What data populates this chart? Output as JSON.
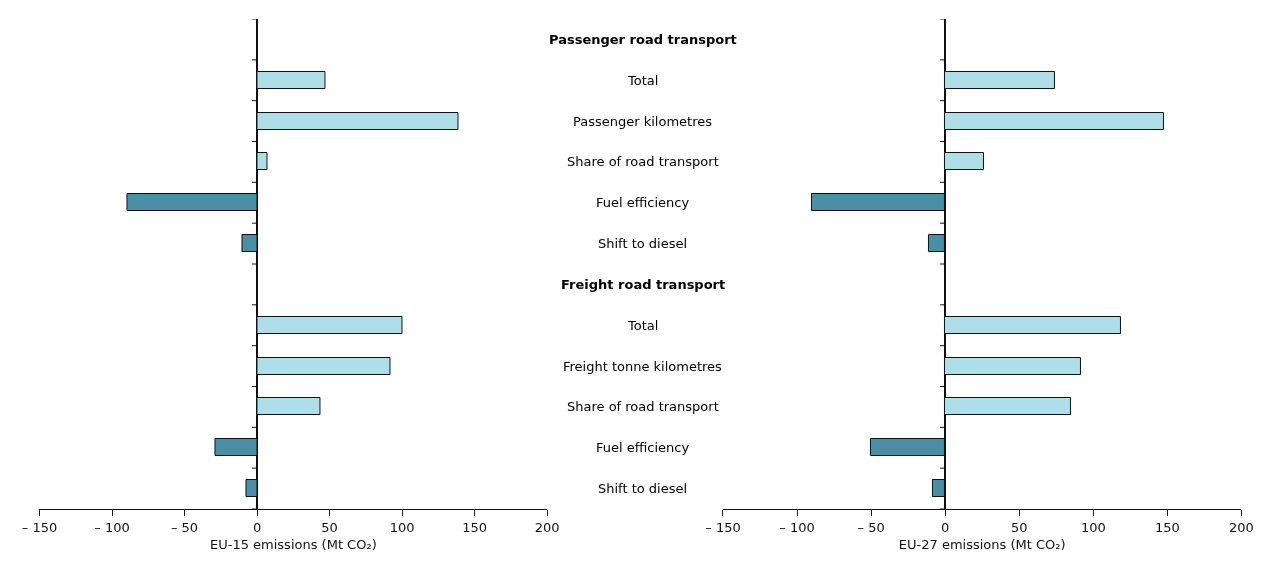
{
  "chart_data": [
    {
      "type": "bar",
      "orientation": "horizontal",
      "xlabel": "EU-15 emissions (Mt CO₂)",
      "categories": [
        "Passenger road transport",
        "Total",
        "Passenger kilometres",
        "Share of road transport",
        "Fuel efficiency",
        "Shift to diesel",
        "Freight road transport",
        "Total",
        "Freight tonne kilometres",
        "Share of road transport",
        "Fuel efficiency",
        "Shift to diesel"
      ],
      "values": [
        null,
        47,
        139,
        7,
        -89,
        -10,
        null,
        100,
        92,
        44,
        -29,
        -7
      ],
      "colors": [
        "#aedfe8",
        "#aedfe8",
        "#aedfe8",
        "#aedfe8",
        "#4a8fa6",
        "#4a8fa6",
        "#aedfe8",
        "#aedfe8",
        "#aedfe8",
        "#aedfe8",
        "#4a8fa6",
        "#4a8fa6"
      ],
      "xlim": [
        -150,
        200
      ],
      "xticks": [
        {
          "value": -150,
          "label": "– 150"
        },
        {
          "value": -100,
          "label": "– 100"
        },
        {
          "value": -50,
          "label": "– 50"
        },
        0,
        50,
        100,
        150,
        200
      ]
    },
    {
      "type": "bar",
      "orientation": "horizontal",
      "xlabel": "EU-27 emissions (Mt CO₂)",
      "categories": [
        null,
        null,
        null,
        null,
        null,
        null,
        null,
        null,
        null,
        null,
        null,
        null
      ],
      "values": [
        null,
        74,
        148,
        26,
        -90,
        -11,
        null,
        119,
        92,
        85,
        -50,
        -8
      ],
      "colors": [
        "#aedfe8",
        "#aedfe8",
        "#aedfe8",
        "#aedfe8",
        "#4a8fa6",
        "#4a8fa6",
        "#aedfe8",
        "#aedfe8",
        "#aedfe8",
        "#aedfe8",
        "#4a8fa6",
        "#4a8fa6"
      ],
      "xlim": [
        -150,
        200
      ],
      "xticks": [
        {
          "value": -150,
          "label": "– 150"
        },
        {
          "value": -100,
          "label": "– 100"
        },
        {
          "value": -50,
          "label": "– 50"
        },
        0,
        50,
        100,
        150,
        200
      ]
    }
  ]
}
